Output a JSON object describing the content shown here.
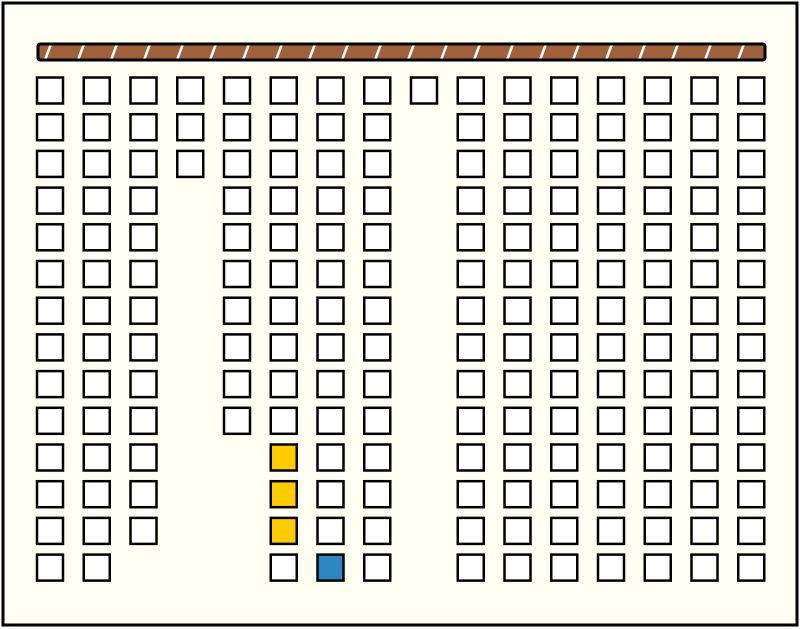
{
  "board": {
    "rows": [
      [
        "cell",
        "cell",
        "cell",
        "cell",
        "cell",
        "cell",
        "cell",
        "cell",
        "cell",
        "cell",
        "cell",
        "cell",
        "cell",
        "cell",
        "cell",
        "cell"
      ],
      [
        "cell",
        "cell",
        "cell",
        "cell",
        "cell",
        "cell",
        "cell",
        "cell",
        null,
        "cell",
        "cell",
        "cell",
        "cell",
        "cell",
        "cell",
        "cell"
      ],
      [
        "cell",
        "cell",
        "cell",
        "cell",
        "cell",
        "cell",
        "cell",
        "cell",
        null,
        "cell",
        "cell",
        "cell",
        "cell",
        "cell",
        "cell",
        "cell"
      ],
      [
        "cell",
        "cell",
        "cell",
        null,
        "cell",
        "cell",
        "cell",
        "cell",
        null,
        "cell",
        "cell",
        "cell",
        "cell",
        "cell",
        "cell",
        "cell"
      ],
      [
        "cell",
        "cell",
        "cell",
        null,
        "cell",
        "cell",
        "cell",
        "cell",
        null,
        "cell",
        "cell",
        "cell",
        "cell",
        "cell",
        "cell",
        "cell"
      ],
      [
        "cell",
        "cell",
        "cell",
        null,
        "cell",
        "cell",
        "cell",
        "cell",
        null,
        "cell",
        "cell",
        "cell",
        "cell",
        "cell",
        "cell",
        "cell"
      ],
      [
        "cell",
        "cell",
        "cell",
        null,
        "cell",
        "cell",
        "cell",
        "cell",
        null,
        "cell",
        "cell",
        "cell",
        "cell",
        "cell",
        "cell",
        "cell"
      ],
      [
        "cell",
        "cell",
        "cell",
        null,
        "cell",
        "cell",
        "cell",
        "cell",
        null,
        "cell",
        "cell",
        "cell",
        "cell",
        "cell",
        "cell",
        "cell"
      ],
      [
        "cell",
        "cell",
        "cell",
        null,
        "cell",
        "cell",
        "cell",
        "cell",
        null,
        "cell",
        "cell",
        "cell",
        "cell",
        "cell",
        "cell",
        "cell"
      ],
      [
        "cell",
        "cell",
        "cell",
        null,
        "cell",
        "cell",
        "cell",
        "cell",
        null,
        "cell",
        "cell",
        "cell",
        "cell",
        "cell",
        "cell",
        "cell"
      ],
      [
        "cell",
        "cell",
        "cell",
        null,
        null,
        "yellow",
        "cell",
        "cell",
        null,
        "cell",
        "cell",
        "cell",
        "cell",
        "cell",
        "cell",
        "cell"
      ],
      [
        "cell",
        "cell",
        "cell",
        null,
        null,
        "yellow",
        "cell",
        "cell",
        null,
        "cell",
        "cell",
        "cell",
        "cell",
        "cell",
        "cell",
        "cell"
      ],
      [
        "cell",
        "cell",
        "cell",
        null,
        null,
        "yellow",
        "cell",
        "cell",
        null,
        "cell",
        "cell",
        "cell",
        "cell",
        "cell",
        "cell",
        "cell"
      ],
      [
        "cell",
        "cell",
        null,
        null,
        null,
        "cell",
        "blue",
        "cell",
        null,
        "cell",
        "cell",
        "cell",
        "cell",
        "cell",
        "cell",
        "cell"
      ]
    ]
  }
}
